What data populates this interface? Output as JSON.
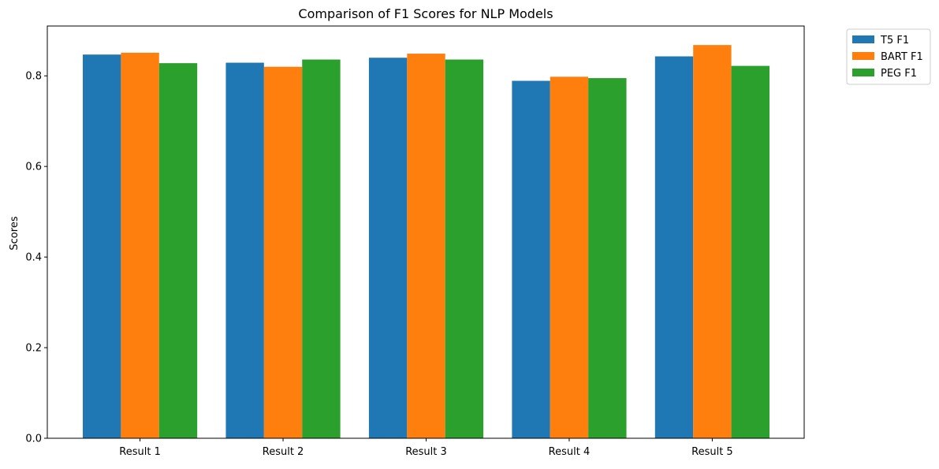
{
  "chart_data": {
    "type": "bar",
    "title": "Comparison of F1 Scores for NLP Models",
    "xlabel": "",
    "ylabel": "Scores",
    "categories": [
      "Result 1",
      "Result 2",
      "Result 3",
      "Result 4",
      "Result 5"
    ],
    "series": [
      {
        "name": "T5 F1",
        "color": "#1f77b4",
        "values": [
          0.847,
          0.829,
          0.84,
          0.789,
          0.843
        ]
      },
      {
        "name": "BART F1",
        "color": "#ff7f0e",
        "values": [
          0.851,
          0.82,
          0.849,
          0.798,
          0.868
        ]
      },
      {
        "name": "PEG F1",
        "color": "#2ca02c",
        "values": [
          0.828,
          0.836,
          0.836,
          0.795,
          0.822
        ]
      }
    ],
    "ylim": [
      0,
      0.91
    ],
    "yticks": [
      0.0,
      0.2,
      0.4,
      0.6,
      0.8
    ],
    "ytick_labels": [
      "0.0",
      "0.2",
      "0.4",
      "0.6",
      "0.8"
    ],
    "grid": false,
    "legend_position": "outside-top-right"
  }
}
